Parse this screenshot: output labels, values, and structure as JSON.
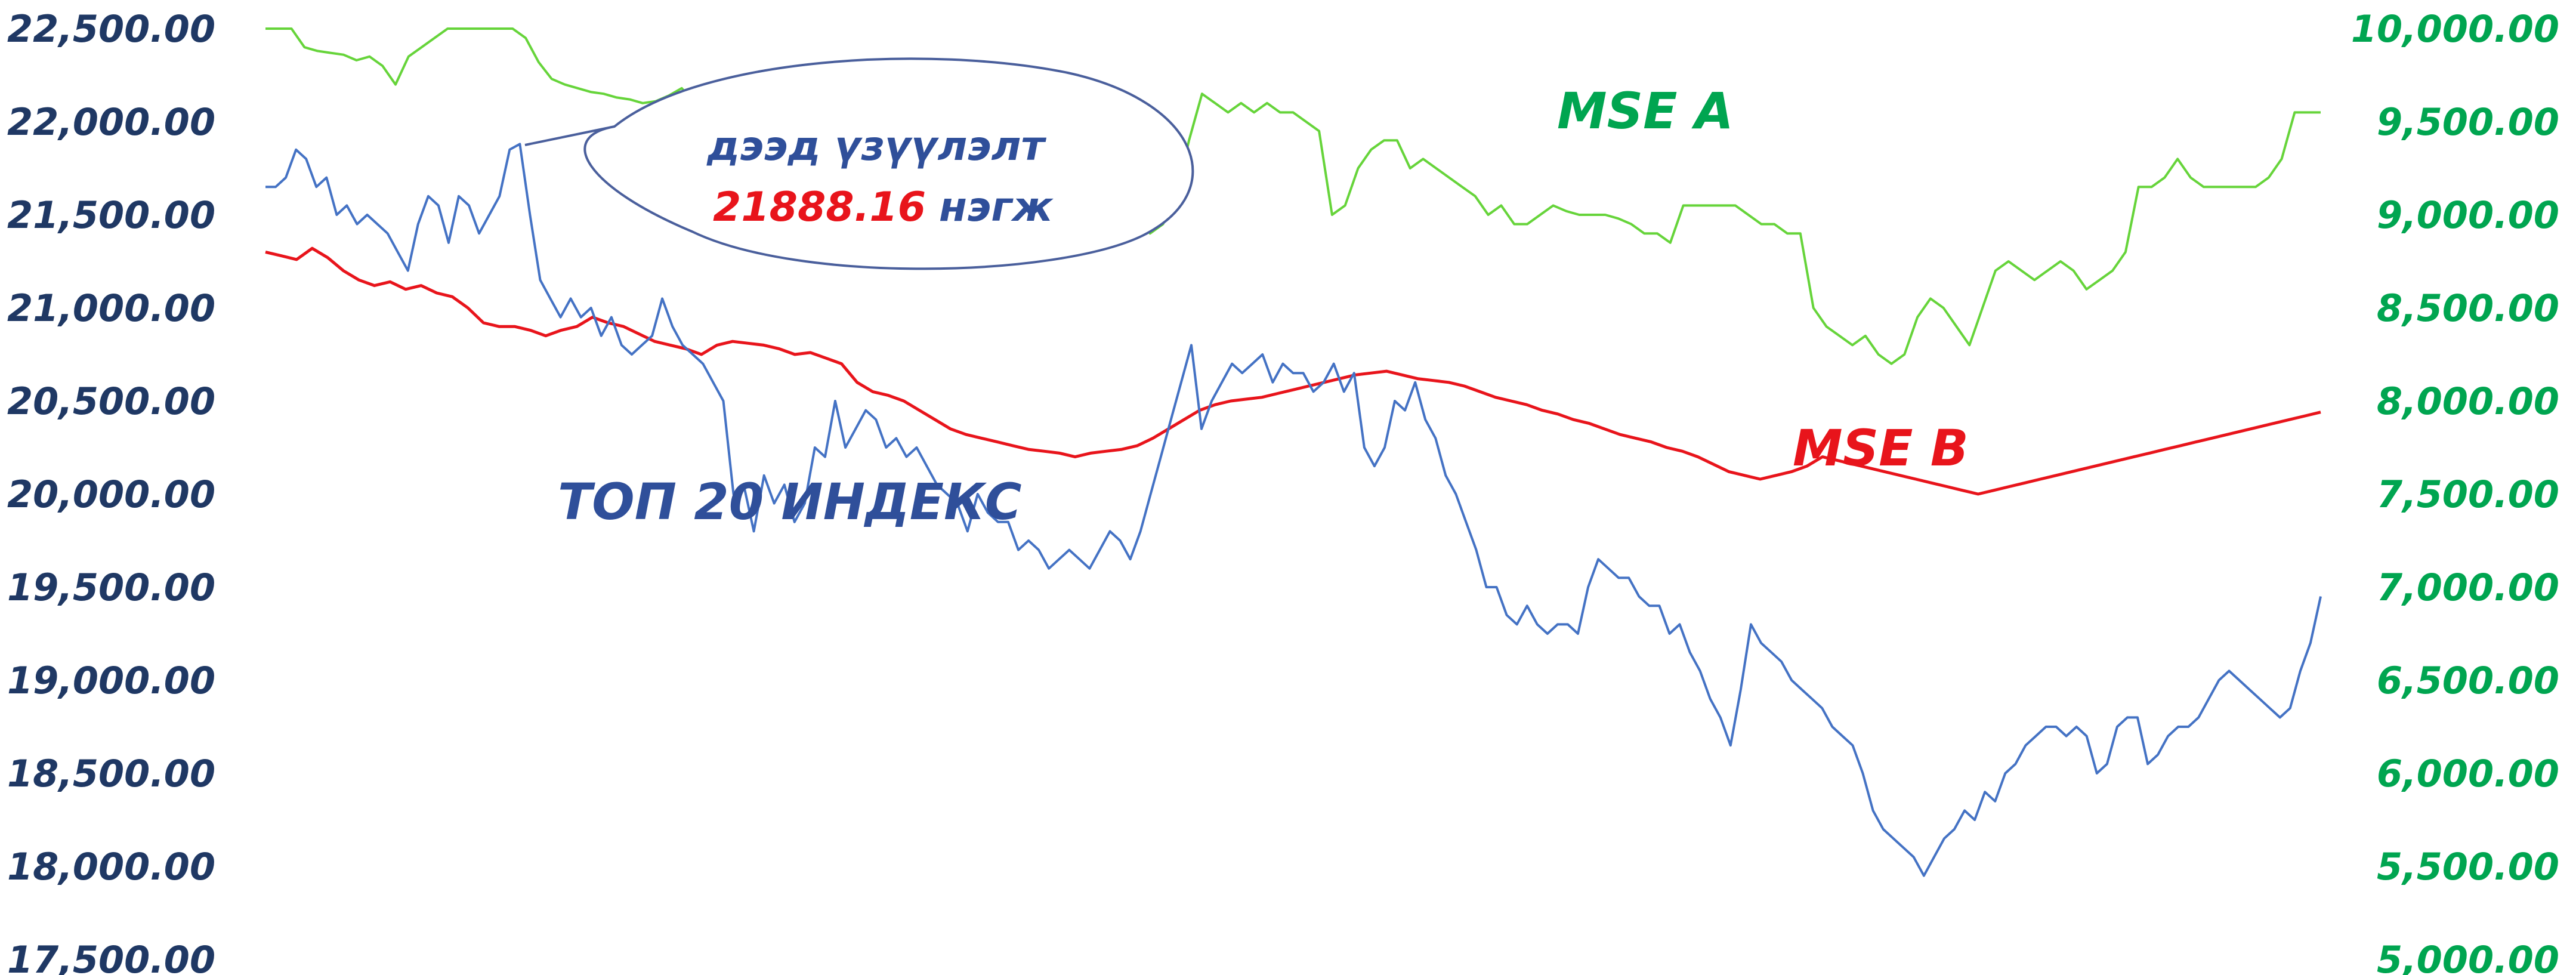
{
  "chart_data": {
    "type": "line",
    "title": "",
    "left_axis": {
      "min": 17500,
      "max": 22500,
      "step": 500,
      "tick_labels": [
        "22,500.00",
        "22,000.00",
        "21,500.00",
        "21,000.00",
        "20,500.00",
        "20,000.00",
        "19,500.00",
        "19,000.00",
        "18,500.00",
        "18,000.00",
        "17,500.00"
      ],
      "color": "#1f3864"
    },
    "right_axis": {
      "min": 5000,
      "max": 10000,
      "step": 500,
      "tick_labels": [
        "10,000.00",
        "9,500.00",
        "9,000.00",
        "8,500.00",
        "8,000.00",
        "7,500.00",
        "7,000.00",
        "6,500.00",
        "6,000.00",
        "5,500.00",
        "5,000.00"
      ],
      "color": "#00a550"
    },
    "grid": false,
    "series": [
      {
        "name": "ТОП 20 ИНДЕКС",
        "axis": "left",
        "color": "#4472c4",
        "label_color": "#2f4f9a",
        "values": [
          21650,
          21650,
          21700,
          21850,
          21800,
          21650,
          21700,
          21500,
          21550,
          21450,
          21500,
          21450,
          21400,
          21300,
          21200,
          21450,
          21600,
          21550,
          21350,
          21600,
          21550,
          21400,
          21500,
          21600,
          21850,
          21880,
          21500,
          21150,
          21050,
          20950,
          21050,
          20950,
          21000,
          20850,
          20950,
          20800,
          20750,
          20800,
          20850,
          21050,
          20900,
          20800,
          20750,
          20700,
          20600,
          20500,
          20000,
          20050,
          19800,
          20100,
          19950,
          20050,
          19850,
          19950,
          20250,
          20200,
          20500,
          20250,
          20350,
          20450,
          20400,
          20250,
          20300,
          20200,
          20250,
          20150,
          20050,
          20000,
          19950,
          19800,
          20000,
          19900,
          19850,
          19850,
          19700,
          19750,
          19700,
          19600,
          19650,
          19700,
          19650,
          19600,
          19700,
          19800,
          19750,
          19650,
          19800,
          20000,
          20200,
          20400,
          20600,
          20800,
          20350,
          20500,
          20600,
          20700,
          20650,
          20700,
          20750,
          20600,
          20700,
          20650,
          20650,
          20550,
          20600,
          20700,
          20550,
          20650,
          20250,
          20150,
          20250,
          20500,
          20450,
          20600,
          20400,
          20300,
          20100,
          20000,
          19850,
          19700,
          19500,
          19500,
          19350,
          19300,
          19400,
          19300,
          19250,
          19300,
          19300,
          19250,
          19500,
          19650,
          19600,
          19550,
          19550,
          19450,
          19400,
          19400,
          19250,
          19300,
          19150,
          19050,
          18900,
          18800,
          18650,
          18950,
          19300,
          19200,
          19150,
          19100,
          19000,
          18950,
          18900,
          18850,
          18750,
          18700,
          18650,
          18500,
          18300,
          18200,
          18150,
          18100,
          18050,
          17950,
          18050,
          18150,
          18200,
          18300,
          18250,
          18400,
          18350,
          18500,
          18550,
          18650,
          18700,
          18750,
          18750,
          18700,
          18750,
          18700,
          18500,
          18550,
          18750,
          18800,
          18800,
          18550,
          18600,
          18700,
          18750,
          18750,
          18800,
          18900,
          19000,
          19050,
          19000,
          18950,
          18900,
          18850,
          18800,
          18850,
          19050,
          19200,
          19450
        ],
        "annotation": {
          "text_line1": "дээд үзүүлэлт",
          "value": "21888.16",
          "unit": "нэгж"
        }
      },
      {
        "name": "MSE A",
        "axis": "right",
        "color": "#66d43a",
        "label_color": "#00a550",
        "values": [
          10000,
          10000,
          10000,
          9900,
          9880,
          9870,
          9860,
          9830,
          9850,
          9800,
          9700,
          9850,
          9900,
          9950,
          10000,
          10000,
          10000,
          10000,
          10000,
          10000,
          9950,
          9820,
          9730,
          9700,
          9680,
          9660,
          9650,
          9630,
          9620,
          9600,
          9610,
          9640,
          9680,
          9600,
          9500,
          9450,
          9200,
          9150,
          9000,
          8900,
          9100,
          8950,
          8900,
          8900,
          9000,
          9250,
          9400,
          9350,
          9400,
          9350,
          9400,
          9400,
          9300,
          9350,
          9380,
          9300,
          9300,
          9350,
          9300,
          9300,
          9200,
          9100,
          9100,
          9100,
          9050,
          8900,
          8850,
          9050,
          8900,
          8950,
          9100,
          9400,
          9650,
          9600,
          9550,
          9600,
          9550,
          9600,
          9550,
          9550,
          9500,
          9450,
          9000,
          9050,
          9250,
          9350,
          9400,
          9400,
          9250,
          9300,
          9250,
          9200,
          9150,
          9100,
          9000,
          9050,
          8950,
          8950,
          9000,
          9050,
          9020,
          9000,
          9000,
          9000,
          8980,
          8950,
          8900,
          8900,
          8850,
          9050,
          9050,
          9050,
          9050,
          9050,
          9000,
          8950,
          8950,
          8900,
          8900,
          8500,
          8400,
          8350,
          8300,
          8350,
          8250,
          8200,
          8250,
          8450,
          8550,
          8500,
          8400,
          8300,
          8500,
          8700,
          8750,
          8700,
          8650,
          8700,
          8750,
          8700,
          8600,
          8650,
          8700,
          8800,
          9150,
          9150,
          9200,
          9300,
          9200,
          9150,
          9150,
          9150,
          9150,
          9150,
          9200,
          9300,
          9550,
          9550,
          9550
        ]
      },
      {
        "name": "MSE B",
        "axis": "right",
        "color": "#e8141b",
        "label_color": "#e8141b",
        "values": [
          8800,
          8780,
          8760,
          8820,
          8770,
          8700,
          8650,
          8620,
          8640,
          8600,
          8620,
          8580,
          8560,
          8500,
          8420,
          8400,
          8400,
          8380,
          8350,
          8380,
          8400,
          8450,
          8420,
          8400,
          8360,
          8320,
          8300,
          8280,
          8250,
          8300,
          8320,
          8310,
          8300,
          8280,
          8250,
          8260,
          8230,
          8200,
          8100,
          8050,
          8030,
          8000,
          7950,
          7900,
          7850,
          7820,
          7800,
          7780,
          7760,
          7740,
          7730,
          7720,
          7700,
          7720,
          7730,
          7740,
          7760,
          7800,
          7850,
          7900,
          7950,
          7980,
          8000,
          8010,
          8020,
          8040,
          8060,
          8080,
          8100,
          8120,
          8140,
          8150,
          8160,
          8140,
          8120,
          8110,
          8100,
          8080,
          8050,
          8020,
          8000,
          7980,
          7950,
          7930,
          7900,
          7880,
          7850,
          7820,
          7800,
          7780,
          7750,
          7730,
          7700,
          7660,
          7620,
          7600,
          7580,
          7600,
          7620,
          7650,
          7700,
          7680,
          7660,
          7640,
          7620,
          7600,
          7580,
          7560,
          7540,
          7520,
          7500,
          7520,
          7540,
          7560,
          7580,
          7600,
          7620,
          7640,
          7660,
          7680,
          7700,
          7720,
          7740,
          7760,
          7780,
          7800,
          7820,
          7840,
          7860,
          7880,
          7900,
          7920,
          7940
        ]
      }
    ]
  }
}
